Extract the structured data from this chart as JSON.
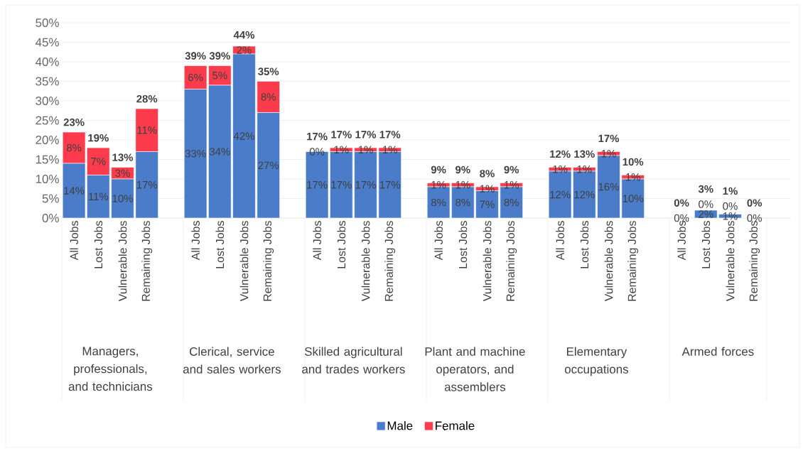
{
  "chart_data": {
    "type": "bar",
    "stacked": true,
    "categories": [
      "All Jobs",
      "Lost Jobs",
      "Vulnerable Jobs",
      "Remaining Jobs",
      null,
      "All Jobs",
      "Lost Jobs",
      "Vulnerable Jobs",
      "Remaining Jobs",
      null,
      "All Jobs",
      "Lost Jobs",
      "Vulnerable Jobs",
      "Remaining Jobs",
      null,
      "All Jobs",
      "Lost Jobs",
      "Vulnerable Jobs",
      "Remaining Jobs",
      null,
      "All Jobs",
      "Lost Jobs",
      "Vulnerable Jobs",
      "Remaining Jobs",
      null,
      "All Jobs",
      "Lost Jobs",
      "Vulnerable Jobs",
      "Remaining Jobs",
      null
    ],
    "series": [
      {
        "name": "Male",
        "color": "#4a7cc9",
        "values": [
          14,
          11,
          10,
          17,
          null,
          33,
          34,
          42,
          27,
          null,
          17,
          17,
          17,
          17,
          null,
          8,
          8,
          7,
          8,
          null,
          12,
          12,
          16,
          10,
          null,
          0,
          2,
          1,
          0,
          null
        ],
        "value_labels": [
          "14%",
          "11%",
          "10%",
          "17%",
          null,
          "33%",
          "34%",
          "42%",
          "27%",
          null,
          "17%",
          "17%",
          "17%",
          "17%",
          null,
          "8%",
          "8%",
          "7%",
          "8%",
          null,
          "12%",
          "12%",
          "16%",
          "10%",
          null,
          "0%",
          "2%",
          "1%",
          "0%",
          null
        ]
      },
      {
        "name": "Female",
        "color": "#fc3c4c",
        "values": [
          8,
          7,
          3,
          11,
          null,
          6,
          5,
          2,
          8,
          null,
          0,
          1,
          1,
          1,
          null,
          1,
          1,
          1,
          1,
          null,
          1,
          1,
          1,
          1,
          null,
          0,
          0,
          0,
          0,
          null
        ],
        "value_labels": [
          "8%",
          "7%",
          "3%",
          "11%",
          null,
          "6%",
          "5%",
          "2%",
          "8%",
          null,
          "0%",
          "1%",
          "1%",
          "1%",
          null,
          "1%",
          "1%",
          "1%",
          "1%",
          null,
          "1%",
          "1%",
          "1%",
          "1%",
          null,
          null,
          "0%",
          "0%",
          null,
          null
        ]
      }
    ],
    "totals": [
      "23%",
      "19%",
      "13%",
      "28%",
      null,
      "39%",
      "39%",
      "44%",
      "35%",
      null,
      "17%",
      "17%",
      "17%",
      "17%",
      null,
      "9%",
      "9%",
      "8%",
      "9%",
      null,
      "12%",
      "13%",
      "17%",
      "10%",
      null,
      "0%",
      "3%",
      "1%",
      "0%",
      null
    ],
    "annotations": [
      "Managers, professionals, and technicians",
      "Clerical, service and sales workers",
      "Skilled agricultural and trades workers",
      "Plant and machine operators, and assemblers",
      "Elementary occupations",
      "Armed forces"
    ],
    "ylim": [
      0,
      50
    ],
    "yticks": [
      {
        "value": 0,
        "label": "0%"
      },
      {
        "value": 5,
        "label": "5%"
      },
      {
        "value": 10,
        "label": "10%"
      },
      {
        "value": 15,
        "label": "15%"
      },
      {
        "value": 20,
        "label": "20%"
      },
      {
        "value": 25,
        "label": "25%"
      },
      {
        "value": 30,
        "label": "30%"
      },
      {
        "value": 35,
        "label": "35%"
      },
      {
        "value": 40,
        "label": "40%"
      },
      {
        "value": 45,
        "label": "45%"
      },
      {
        "value": 50,
        "label": "50%"
      }
    ],
    "grid": "y",
    "legend": "bottom"
  }
}
